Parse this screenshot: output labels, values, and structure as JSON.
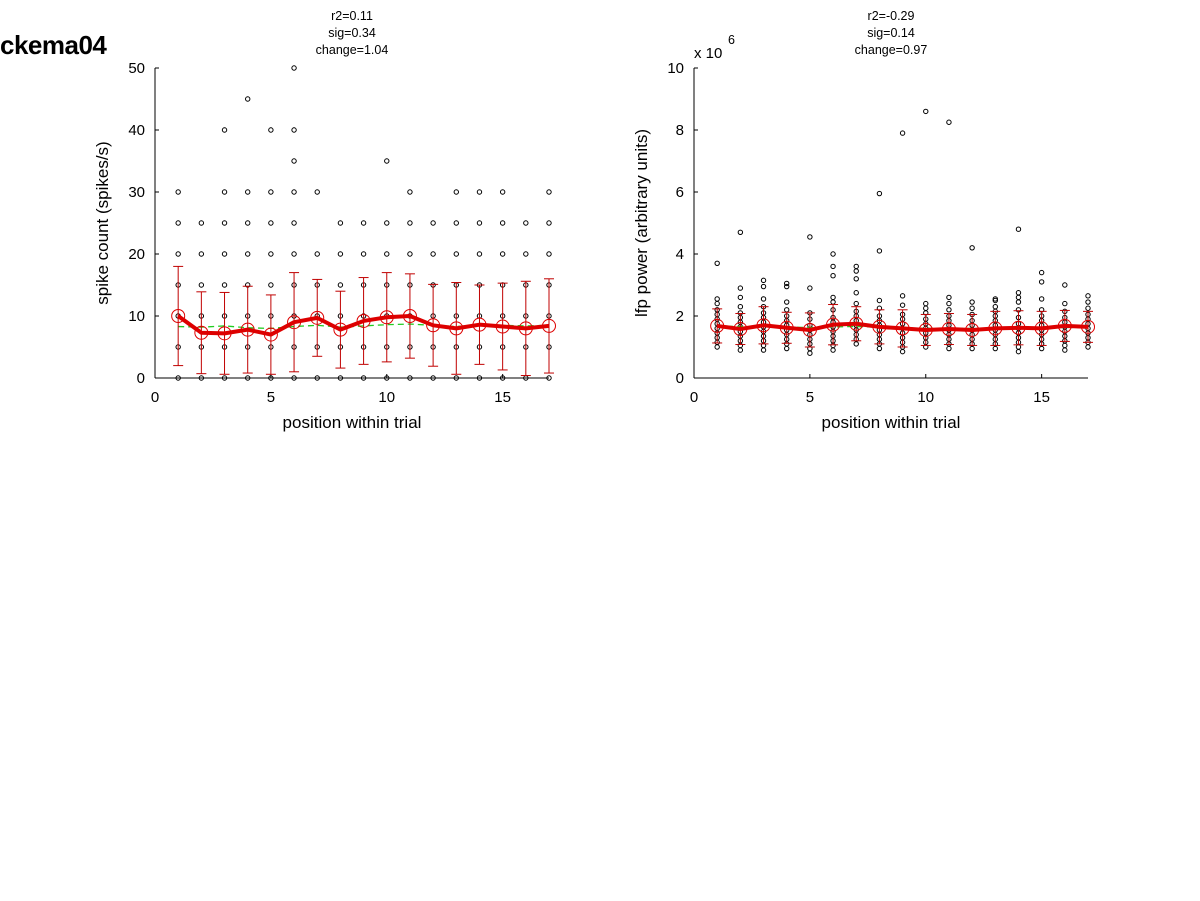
{
  "figure": {
    "title": "ckema04"
  },
  "chart_data": [
    {
      "type": "scatter",
      "title_lines": [
        "r2=0.11",
        "sig=0.34",
        "change=1.04"
      ],
      "xlabel": "position within trial",
      "ylabel": "spike count (spikes/s)",
      "exponent_label": "",
      "exponent_sup": "",
      "xlim": [
        0,
        17
      ],
      "ylim": [
        0,
        50
      ],
      "xticks": [
        0,
        5,
        10,
        15
      ],
      "yticks": [
        0,
        10,
        20,
        30,
        40,
        50
      ],
      "grid": false,
      "points": {
        "x": [
          1,
          1,
          1,
          1,
          1,
          1,
          1,
          2,
          2,
          2,
          2,
          2,
          2,
          3,
          3,
          3,
          3,
          3,
          3,
          3,
          3,
          4,
          4,
          4,
          4,
          4,
          4,
          4,
          4,
          5,
          5,
          5,
          5,
          5,
          5,
          5,
          5,
          6,
          6,
          6,
          6,
          6,
          6,
          6,
          6,
          6,
          6,
          7,
          7,
          7,
          7,
          7,
          7,
          8,
          8,
          8,
          8,
          8,
          8,
          9,
          9,
          9,
          9,
          9,
          9,
          10,
          10,
          10,
          10,
          10,
          10,
          10,
          11,
          11,
          11,
          11,
          11,
          11,
          11,
          12,
          12,
          12,
          12,
          12,
          12,
          13,
          13,
          13,
          13,
          13,
          13,
          13,
          14,
          14,
          14,
          14,
          14,
          14,
          14,
          15,
          15,
          15,
          15,
          15,
          15,
          15,
          16,
          16,
          16,
          16,
          16,
          16,
          17,
          17,
          17,
          17,
          17,
          17,
          17
        ],
        "y": [
          0,
          5,
          10,
          15,
          20,
          25,
          30,
          0,
          5,
          10,
          15,
          20,
          25,
          0,
          5,
          10,
          15,
          20,
          25,
          30,
          40,
          0,
          5,
          10,
          15,
          20,
          25,
          30,
          45,
          0,
          5,
          10,
          15,
          20,
          25,
          30,
          40,
          0,
          5,
          10,
          15,
          20,
          25,
          30,
          35,
          40,
          50,
          0,
          5,
          10,
          15,
          20,
          30,
          0,
          5,
          10,
          15,
          20,
          25,
          0,
          5,
          10,
          15,
          20,
          25,
          0,
          5,
          10,
          15,
          20,
          25,
          35,
          0,
          5,
          10,
          15,
          20,
          25,
          30,
          0,
          5,
          10,
          15,
          20,
          25,
          0,
          5,
          10,
          15,
          20,
          25,
          30,
          0,
          5,
          10,
          15,
          20,
          25,
          30,
          0,
          5,
          10,
          15,
          20,
          25,
          30,
          0,
          5,
          10,
          15,
          20,
          25,
          0,
          5,
          10,
          15,
          20,
          25,
          30
        ]
      },
      "series": [
        {
          "name": "",
          "kind": "mean_with_error",
          "color": "#dd0000",
          "x": [
            1,
            2,
            3,
            4,
            5,
            6,
            7,
            8,
            9,
            10,
            11,
            12,
            13,
            14,
            15,
            16,
            17
          ],
          "y": [
            10.0,
            7.3,
            7.2,
            7.8,
            7.0,
            9.0,
            9.7,
            7.8,
            9.2,
            9.8,
            10.0,
            8.5,
            8.0,
            8.6,
            8.3,
            8.0,
            8.4
          ],
          "err": [
            8.0,
            6.6,
            6.6,
            7.0,
            6.4,
            8.0,
            6.2,
            6.2,
            7.0,
            7.2,
            6.8,
            6.6,
            7.4,
            6.4,
            7.0,
            7.6,
            7.6
          ]
        },
        {
          "name": "",
          "kind": "fit",
          "color": "#22cc22",
          "x": [
            1,
            2,
            3,
            4,
            5,
            6,
            7,
            8,
            9,
            10,
            11,
            12,
            13,
            14,
            15,
            16,
            17
          ],
          "y": [
            8.3,
            8.2,
            8.4,
            8.1,
            8.0,
            8.3,
            8.5,
            8.2,
            8.4,
            8.6,
            8.7,
            8.5,
            8.3,
            8.6,
            8.5,
            8.4,
            8.5
          ]
        }
      ]
    },
    {
      "type": "scatter",
      "title_lines": [
        "r2=-0.29",
        "sig=0.14",
        "change=0.97"
      ],
      "xlabel": "position within trial",
      "ylabel": "lfp power (arbitrary units)",
      "exponent_label": "x 10",
      "exponent_sup": "6",
      "xlim": [
        0,
        17
      ],
      "ylim": [
        0,
        10
      ],
      "xticks": [
        0,
        5,
        10,
        15
      ],
      "yticks": [
        0,
        2,
        4,
        6,
        8,
        10
      ],
      "grid": false,
      "points": {
        "x": [
          1,
          1,
          1,
          1,
          1,
          1,
          1,
          1,
          1,
          1,
          1,
          1,
          2,
          2,
          2,
          2,
          2,
          2,
          2,
          2,
          2,
          2,
          2,
          2,
          2,
          3,
          3,
          3,
          3,
          3,
          3,
          3,
          3,
          3,
          3,
          3,
          3,
          3,
          4,
          4,
          4,
          4,
          4,
          4,
          4,
          4,
          4,
          4,
          4,
          4,
          5,
          5,
          5,
          5,
          5,
          5,
          5,
          5,
          5,
          5,
          5,
          6,
          6,
          6,
          6,
          6,
          6,
          6,
          6,
          6,
          6,
          6,
          6,
          6,
          6,
          7,
          7,
          7,
          7,
          7,
          7,
          7,
          7,
          7,
          7,
          7,
          7,
          7,
          8,
          8,
          8,
          8,
          8,
          8,
          8,
          8,
          8,
          8,
          8,
          8,
          9,
          9,
          9,
          9,
          9,
          9,
          9,
          9,
          9,
          9,
          9,
          9,
          10,
          10,
          10,
          10,
          10,
          10,
          10,
          10,
          10,
          10,
          10,
          11,
          11,
          11,
          11,
          11,
          11,
          11,
          11,
          11,
          11,
          11,
          11,
          12,
          12,
          12,
          12,
          12,
          12,
          12,
          12,
          12,
          12,
          12,
          13,
          13,
          13,
          13,
          13,
          13,
          13,
          13,
          13,
          13,
          13,
          13,
          14,
          14,
          14,
          14,
          14,
          14,
          14,
          14,
          14,
          14,
          14,
          14,
          14,
          15,
          15,
          15,
          15,
          15,
          15,
          15,
          15,
          15,
          15,
          15,
          15,
          16,
          16,
          16,
          16,
          16,
          16,
          16,
          16,
          16,
          16,
          16,
          17,
          17,
          17,
          17,
          17,
          17,
          17,
          17,
          17,
          17,
          17
        ],
        "y": [
          1.0,
          1.15,
          1.3,
          1.45,
          1.6,
          1.75,
          1.9,
          2.05,
          2.2,
          2.4,
          2.55,
          3.7,
          0.9,
          1.05,
          1.2,
          1.35,
          1.5,
          1.65,
          1.8,
          1.95,
          2.1,
          2.3,
          2.6,
          2.9,
          4.7,
          0.9,
          1.05,
          1.2,
          1.35,
          1.5,
          1.65,
          1.8,
          1.95,
          2.1,
          2.3,
          2.55,
          2.95,
          3.15,
          0.95,
          1.1,
          1.25,
          1.4,
          1.55,
          1.7,
          1.85,
          2.0,
          2.2,
          2.45,
          2.95,
          3.05,
          0.8,
          0.95,
          1.1,
          1.25,
          1.4,
          1.55,
          1.7,
          1.9,
          2.1,
          2.9,
          4.55,
          0.9,
          1.05,
          1.2,
          1.35,
          1.5,
          1.65,
          1.8,
          1.95,
          2.2,
          2.45,
          2.6,
          3.3,
          3.6,
          4.0,
          1.1,
          1.25,
          1.4,
          1.55,
          1.7,
          1.85,
          2.0,
          2.15,
          2.4,
          2.75,
          3.2,
          3.45,
          3.6,
          0.95,
          1.1,
          1.25,
          1.4,
          1.55,
          1.7,
          1.85,
          2.0,
          2.25,
          2.5,
          4.1,
          5.95,
          0.85,
          1.0,
          1.15,
          1.3,
          1.45,
          1.6,
          1.75,
          1.9,
          2.05,
          2.35,
          2.65,
          7.9,
          1.0,
          1.15,
          1.3,
          1.45,
          1.6,
          1.75,
          1.9,
          2.1,
          2.25,
          2.4,
          8.6,
          0.95,
          1.1,
          1.25,
          1.4,
          1.55,
          1.7,
          1.85,
          2.0,
          2.2,
          2.4,
          2.6,
          8.25,
          0.95,
          1.1,
          1.25,
          1.4,
          1.55,
          1.7,
          1.85,
          2.05,
          2.25,
          2.45,
          4.2,
          0.95,
          1.1,
          1.25,
          1.4,
          1.55,
          1.7,
          1.85,
          2.0,
          2.15,
          2.3,
          2.5,
          2.55,
          0.85,
          1.0,
          1.15,
          1.3,
          1.45,
          1.6,
          1.75,
          1.95,
          2.2,
          2.45,
          2.75,
          4.8,
          2.6,
          0.95,
          1.1,
          1.25,
          1.4,
          1.55,
          1.7,
          1.85,
          2.0,
          2.2,
          2.55,
          3.1,
          3.4,
          0.9,
          1.05,
          1.2,
          1.35,
          1.5,
          1.65,
          1.8,
          1.95,
          2.15,
          2.4,
          3.0,
          1.0,
          1.15,
          1.3,
          1.45,
          1.6,
          1.75,
          1.9,
          2.05,
          2.25,
          2.45,
          2.65
        ]
      },
      "series": [
        {
          "name": "",
          "kind": "mean_with_error",
          "color": "#dd0000",
          "x": [
            1,
            2,
            3,
            4,
            5,
            6,
            7,
            8,
            9,
            10,
            11,
            12,
            13,
            14,
            15,
            16,
            17
          ],
          "y": [
            1.68,
            1.58,
            1.7,
            1.62,
            1.55,
            1.72,
            1.75,
            1.65,
            1.6,
            1.55,
            1.58,
            1.55,
            1.6,
            1.62,
            1.6,
            1.68,
            1.65
          ],
          "err": [
            0.55,
            0.5,
            0.6,
            0.5,
            0.55,
            0.65,
            0.55,
            0.55,
            0.6,
            0.5,
            0.5,
            0.5,
            0.55,
            0.55,
            0.55,
            0.5,
            0.5
          ]
        },
        {
          "name": "",
          "kind": "fit",
          "color": "#22cc22",
          "x": [
            1,
            2,
            3,
            4,
            5,
            6,
            7,
            8,
            9,
            10,
            11,
            12,
            13,
            14,
            15,
            16,
            17
          ],
          "y": [
            1.68,
            1.66,
            1.65,
            1.64,
            1.63,
            1.65,
            1.66,
            1.64,
            1.62,
            1.6,
            1.6,
            1.6,
            1.61,
            1.62,
            1.62,
            1.63,
            1.63
          ]
        }
      ]
    }
  ]
}
